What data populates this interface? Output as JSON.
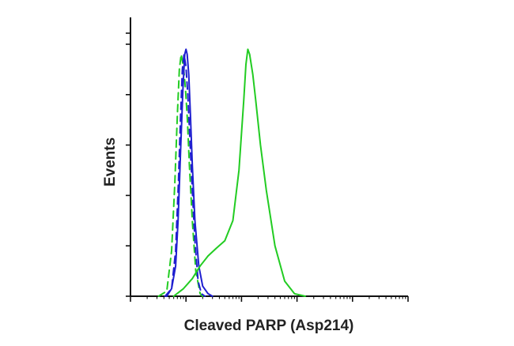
{
  "chart_data": {
    "type": "line",
    "title": "",
    "xlabel": "Cleaved PARP (Asp214)",
    "ylabel": "Events",
    "x_scale": "log",
    "xlim": [
      0.1,
      10000
    ],
    "ylim": [
      0,
      100
    ],
    "x_tick_labels": [],
    "y_tick_labels": [],
    "grid": false,
    "legend": "none",
    "colors": {
      "frame": "#111111",
      "green": "#22cc22",
      "blue": "#1f1fd0"
    },
    "series": [
      {
        "color": "#22cc22",
        "dash": "dashed",
        "x": [
          0.32,
          0.45,
          0.55,
          0.63,
          0.7,
          0.76,
          0.82,
          0.9,
          0.98,
          1.06,
          1.15,
          1.3,
          1.5,
          1.8,
          2.0
        ],
        "y": [
          0,
          2,
          18,
          45,
          72,
          90,
          96,
          91,
          82,
          70,
          52,
          30,
          10,
          1,
          0
        ]
      },
      {
        "color": "#1f1fd0",
        "dash": "dashed",
        "x": [
          0.42,
          0.55,
          0.65,
          0.73,
          0.8,
          0.86,
          0.92,
          1.0,
          1.08,
          1.18,
          1.3,
          1.45,
          1.65,
          1.9,
          2.2
        ],
        "y": [
          0,
          3,
          18,
          45,
          72,
          90,
          96,
          91,
          80,
          62,
          42,
          22,
          6,
          1,
          0
        ]
      },
      {
        "color": "#1f1fd0",
        "dash": "solid",
        "x": [
          0.45,
          0.55,
          0.65,
          0.72,
          0.8,
          0.88,
          0.95,
          1.0,
          1.05,
          1.12,
          1.2,
          1.3,
          1.45,
          1.7,
          2.0,
          2.5,
          3.0
        ],
        "y": [
          0,
          3,
          12,
          30,
          58,
          82,
          96,
          98,
          96,
          88,
          72,
          52,
          30,
          12,
          4,
          1,
          0
        ]
      },
      {
        "color": "#22cc22",
        "dash": "solid",
        "x": [
          0.6,
          0.9,
          1.3,
          1.8,
          2.5,
          3.5,
          5,
          7,
          9,
          11,
          12,
          13,
          14,
          16,
          18,
          22,
          28,
          40,
          60,
          90,
          140
        ],
        "y": [
          0,
          3,
          7,
          12,
          16,
          19,
          22,
          30,
          50,
          78,
          92,
          98,
          96,
          88,
          78,
          60,
          42,
          20,
          6,
          1,
          0
        ]
      }
    ]
  }
}
